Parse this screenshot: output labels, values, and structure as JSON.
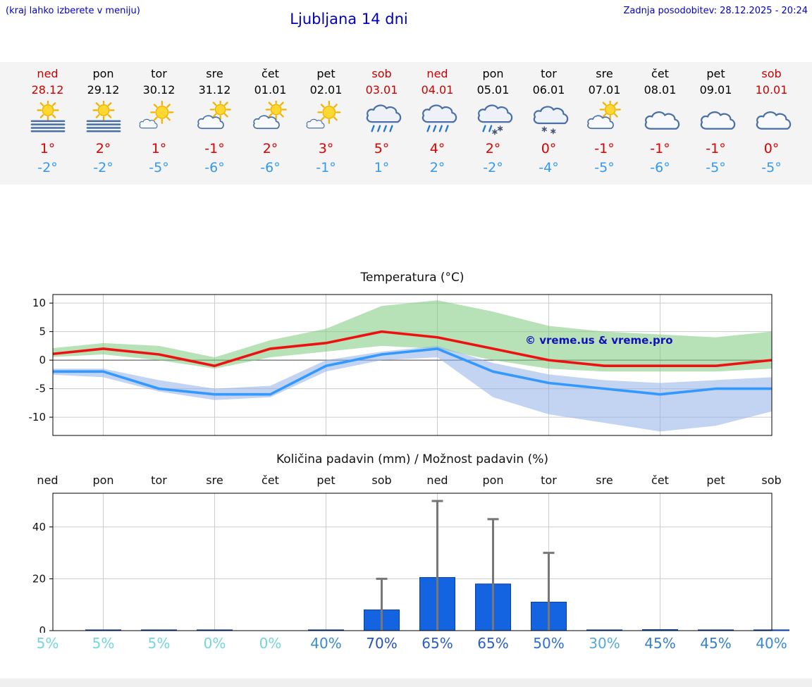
{
  "header": {
    "hint": "(kraj lahko izberete v meniju)",
    "title": "Ljubljana 14 dni",
    "last_update": "Zadnja posodobitev: 28.12.2025 - 20:24"
  },
  "colors": {
    "link_blue": "#0000cc",
    "weekend_red": "#cc0000",
    "temp_max_red": "#dd0000",
    "temp_min_blue": "#3399ee",
    "strip_background": "#f4f4f4"
  },
  "days": [
    {
      "name": "ned",
      "date": "28.12",
      "color": "#cc0000",
      "icon": "sun-fog",
      "tmax": "1°",
      "tmin": "-2°"
    },
    {
      "name": "pon",
      "date": "29.12",
      "color": "#000000",
      "icon": "sun-fog",
      "tmax": "2°",
      "tmin": "-2°"
    },
    {
      "name": "tor",
      "date": "30.12",
      "color": "#000000",
      "icon": "mostly-sunny",
      "tmax": "1°",
      "tmin": "-5°"
    },
    {
      "name": "sre",
      "date": "31.12",
      "color": "#000000",
      "icon": "partly-cloudy",
      "tmax": "-1°",
      "tmin": "-6°"
    },
    {
      "name": "čet",
      "date": "01.01",
      "color": "#000000",
      "icon": "partly-cloudy",
      "tmax": "2°",
      "tmin": "-6°"
    },
    {
      "name": "pet",
      "date": "02.01",
      "color": "#000000",
      "icon": "mostly-sunny",
      "tmax": "3°",
      "tmin": "-1°"
    },
    {
      "name": "sob",
      "date": "03.01",
      "color": "#cc0000",
      "icon": "rain",
      "tmax": "5°",
      "tmin": "1°"
    },
    {
      "name": "ned",
      "date": "04.01",
      "color": "#cc0000",
      "icon": "rain",
      "tmax": "4°",
      "tmin": "2°"
    },
    {
      "name": "pon",
      "date": "05.01",
      "color": "#000000",
      "icon": "sleet",
      "tmax": "2°",
      "tmin": "-2°"
    },
    {
      "name": "tor",
      "date": "06.01",
      "color": "#000000",
      "icon": "snow",
      "tmax": "0°",
      "tmin": "-4°"
    },
    {
      "name": "sre",
      "date": "07.01",
      "color": "#000000",
      "icon": "partly-cloudy",
      "tmax": "-1°",
      "tmin": "-5°"
    },
    {
      "name": "čet",
      "date": "08.01",
      "color": "#000000",
      "icon": "cloudy",
      "tmax": "-1°",
      "tmin": "-6°"
    },
    {
      "name": "pet",
      "date": "09.01",
      "color": "#000000",
      "icon": "cloudy",
      "tmax": "-1°",
      "tmin": "-5°"
    },
    {
      "name": "sob",
      "date": "10.01",
      "color": "#cc0000",
      "icon": "cloudy",
      "tmax": "0°",
      "tmin": "-5°"
    }
  ],
  "chart_data": [
    {
      "type": "line",
      "title": "Temperatura (°C)",
      "categories": [
        "ned",
        "pon",
        "tor",
        "sre",
        "čet",
        "pet",
        "sob",
        "ned",
        "pon",
        "tor",
        "sre",
        "čet",
        "pet",
        "sob"
      ],
      "ylim": [
        -13.2,
        11.5
      ],
      "yticks": [
        10,
        5,
        0,
        -5,
        -10
      ],
      "grid": "on",
      "series": [
        {
          "name": "temp-max-line",
          "color": "#ee1111",
          "values": [
            1,
            2,
            1,
            -1,
            2,
            3,
            5,
            4,
            2,
            0,
            -1,
            -1,
            -1,
            0
          ]
        },
        {
          "name": "temp-min-line",
          "color": "#3399ff",
          "values": [
            -2,
            -2,
            -5,
            -6,
            -6,
            -1,
            1,
            2,
            -2,
            -4,
            -5,
            -6,
            -5,
            -5
          ]
        }
      ],
      "bands": [
        {
          "name": "temp-max-range-band",
          "color": "#7cc87c",
          "upper": [
            2,
            3,
            2.5,
            0.5,
            3.5,
            5.5,
            9.5,
            10.5,
            8.5,
            6,
            5,
            4.5,
            4,
            5
          ],
          "lower": [
            0.5,
            1,
            0,
            -1.5,
            0.5,
            1.5,
            2.5,
            2,
            0,
            -1.5,
            -2,
            -2,
            -2,
            -1.5
          ]
        },
        {
          "name": "temp-min-range-band",
          "color": "#8fb0e8",
          "upper": [
            -1.5,
            -1.5,
            -3.5,
            -5,
            -4.5,
            0,
            1.5,
            2.5,
            -0.5,
            -2.5,
            -3.5,
            -4,
            -3.5,
            -3
          ],
          "lower": [
            -2.5,
            -3,
            -5.5,
            -7,
            -6.5,
            -2,
            0,
            0.5,
            -6.5,
            -9.5,
            -11,
            -12.5,
            -11.5,
            -9
          ]
        }
      ],
      "watermark": "© vreme.us & vreme.pro"
    },
    {
      "type": "bar",
      "title": "Količina padavin (mm) / Možnost padavin (%)",
      "categories": [
        "ned",
        "pon",
        "tor",
        "sre",
        "čet",
        "pet",
        "sob",
        "ned",
        "pon",
        "tor",
        "sre",
        "čet",
        "pet",
        "sob"
      ],
      "ylim": [
        0,
        53
      ],
      "yticks": [
        0,
        20,
        40
      ],
      "bar_color": "#1463e0",
      "values": [
        0,
        0.3,
        0.3,
        0.3,
        0,
        0.3,
        8,
        20.5,
        18,
        11,
        0.3,
        0.4,
        0.3,
        0.3
      ],
      "whiskers": [
        0,
        0,
        0,
        0,
        0,
        0,
        20,
        50,
        43,
        30,
        0,
        0,
        0,
        0
      ],
      "probability": [
        {
          "text": "5%",
          "color": "#74d6dc"
        },
        {
          "text": "5%",
          "color": "#74d6dc"
        },
        {
          "text": "5%",
          "color": "#74d6dc"
        },
        {
          "text": "0%",
          "color": "#74d6dc"
        },
        {
          "text": "0%",
          "color": "#74d6dc"
        },
        {
          "text": "40%",
          "color": "#3a8ad2"
        },
        {
          "text": "70%",
          "color": "#2351c0"
        },
        {
          "text": "65%",
          "color": "#2a5ec8"
        },
        {
          "text": "65%",
          "color": "#2a5ec8"
        },
        {
          "text": "50%",
          "color": "#2f6fd0"
        },
        {
          "text": "30%",
          "color": "#54aade"
        },
        {
          "text": "45%",
          "color": "#3380cc"
        },
        {
          "text": "45%",
          "color": "#3380cc"
        },
        {
          "text": "40%",
          "color": "#3a8ad2"
        }
      ]
    }
  ]
}
